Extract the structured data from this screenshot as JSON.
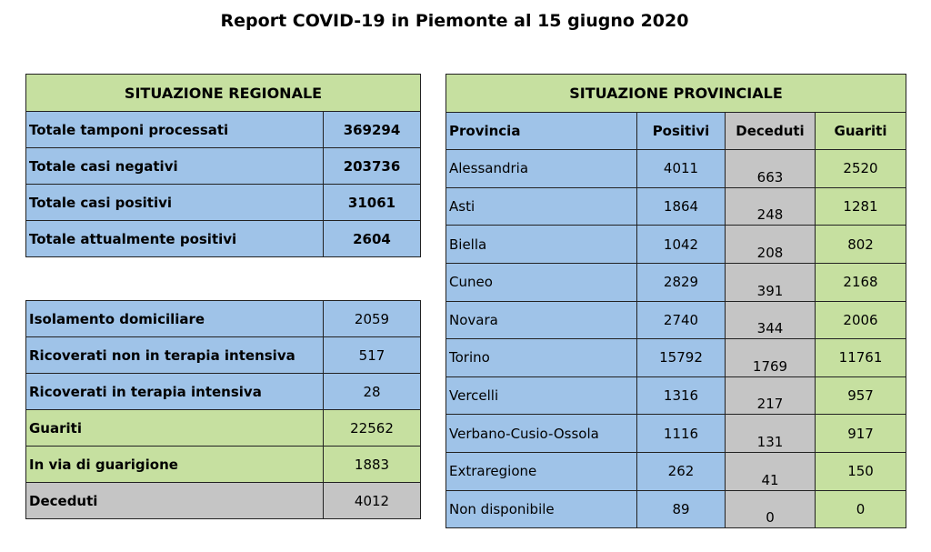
{
  "title": "Report COVID-19 in Piemonte al 15 giugno 2020",
  "regional": {
    "header": "SITUAZIONE REGIONALE",
    "totals": [
      {
        "label": "Totale tamponi processati",
        "value": "369294"
      },
      {
        "label": "Totale casi negativi",
        "value": "203736"
      },
      {
        "label": "Totale casi positivi",
        "value": "31061"
      },
      {
        "label": "Totale attualmente positivi",
        "value": "2604"
      }
    ],
    "details": [
      {
        "label": "Isolamento domiciliare",
        "value": "2059"
      },
      {
        "label": "Ricoverati non in terapia intensiva",
        "value": "517"
      },
      {
        "label": "Ricoverati in terapia intensiva",
        "value": "28"
      },
      {
        "label": "Guariti",
        "value": "22562"
      },
      {
        "label": "In via di guarigione",
        "value": "1883"
      },
      {
        "label": "Deceduti",
        "value": "4012"
      }
    ]
  },
  "provincial": {
    "header": "SITUAZIONE PROVINCIALE",
    "columns": [
      "Provincia",
      "Positivi",
      "Deceduti",
      "Guariti"
    ],
    "rows": [
      {
        "provincia": "Alessandria",
        "positivi": "4011",
        "deceduti": "663",
        "guariti": "2520"
      },
      {
        "provincia": "Asti",
        "positivi": "1864",
        "deceduti": "248",
        "guariti": "1281"
      },
      {
        "provincia": "Biella",
        "positivi": "1042",
        "deceduti": "208",
        "guariti": "802"
      },
      {
        "provincia": "Cuneo",
        "positivi": "2829",
        "deceduti": "391",
        "guariti": "2168"
      },
      {
        "provincia": "Novara",
        "positivi": "2740",
        "deceduti": "344",
        "guariti": "2006"
      },
      {
        "provincia": "Torino",
        "positivi": "15792",
        "deceduti": "1769",
        "guariti": "11761"
      },
      {
        "provincia": "Vercelli",
        "positivi": "1316",
        "deceduti": "217",
        "guariti": "957"
      },
      {
        "provincia": "Verbano-Cusio-Ossola",
        "positivi": "1116",
        "deceduti": "131",
        "guariti": "917"
      },
      {
        "provincia": "Extraregione",
        "positivi": "262",
        "deceduti": "41",
        "guariti": "150"
      },
      {
        "provincia": "Non disponibile",
        "positivi": "89",
        "deceduti": "0",
        "guariti": "0"
      }
    ]
  },
  "colors": {
    "green": "#c6e0a0",
    "blue": "#9fc3e8",
    "grey": "#c5c5c5"
  }
}
